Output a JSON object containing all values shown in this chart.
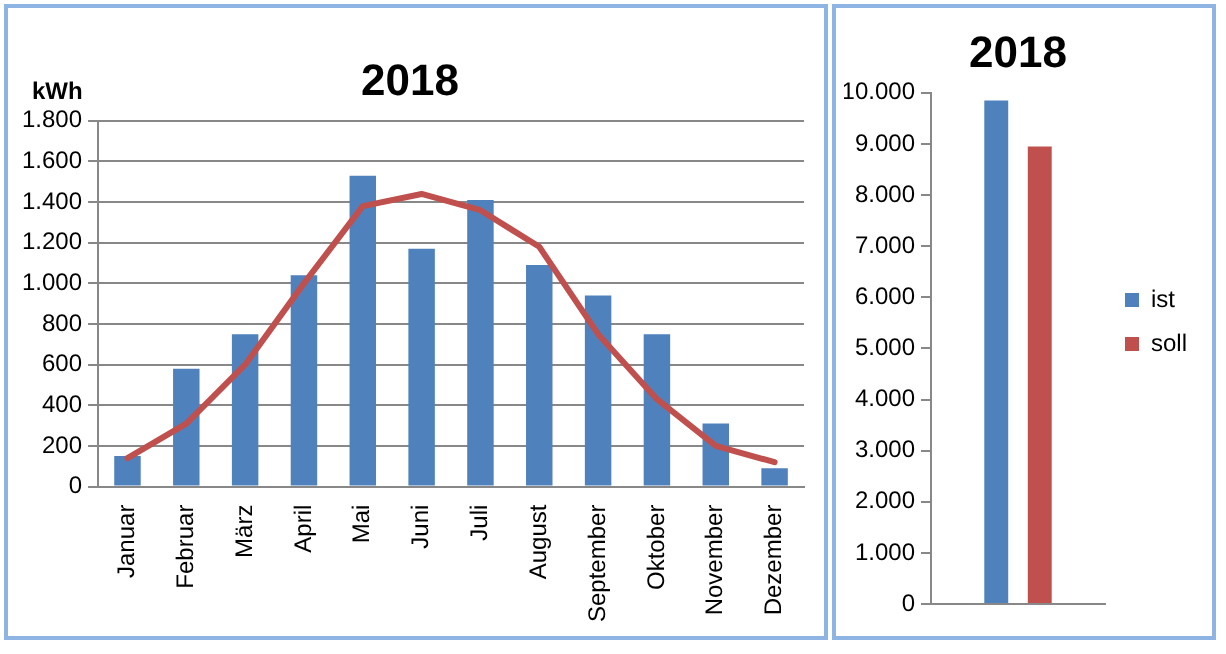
{
  "chart_data": [
    {
      "type": "bar",
      "title": "2018",
      "ylabel": "kWh",
      "categories": [
        "Januar",
        "Februar",
        "März",
        "April",
        "Mai",
        "Juni",
        "Juli",
        "August",
        "September",
        "Oktober",
        "November",
        "Dezember"
      ],
      "series": [
        {
          "type": "bar",
          "color": "#4f81bd",
          "values": [
            150,
            580,
            750,
            1040,
            1530,
            1170,
            1410,
            1090,
            940,
            750,
            310,
            90
          ]
        },
        {
          "type": "line",
          "color": "#c0504d",
          "values": [
            140,
            310,
            600,
            1000,
            1380,
            1440,
            1360,
            1180,
            750,
            430,
            200,
            120
          ]
        }
      ],
      "ylim": [
        0,
        1800
      ],
      "yticks": [
        {
          "value": 0,
          "label": "0"
        },
        {
          "value": 200,
          "label": "200"
        },
        {
          "value": 400,
          "label": "400"
        },
        {
          "value": 600,
          "label": "600"
        },
        {
          "value": 800,
          "label": "800"
        },
        {
          "value": 1000,
          "label": "1.000"
        },
        {
          "value": 1200,
          "label": "1.200"
        },
        {
          "value": 1400,
          "label": "1.400"
        },
        {
          "value": 1600,
          "label": "1.600"
        },
        {
          "value": 1800,
          "label": "1.800"
        }
      ],
      "grid": "y",
      "marker": "none",
      "line_style": "solid"
    },
    {
      "type": "bar",
      "title": "2018",
      "categories": [
        null
      ],
      "series": [
        {
          "name": "ist",
          "color": "#4f81bd",
          "values": [
            9850
          ]
        },
        {
          "name": "soll",
          "color": "#c0504d",
          "values": [
            8950
          ]
        }
      ],
      "ylim": [
        0,
        10000
      ],
      "yticks": [
        {
          "value": 0,
          "label": "0"
        },
        {
          "value": 1000,
          "label": "1.000"
        },
        {
          "value": 2000,
          "label": "2.000"
        },
        {
          "value": 3000,
          "label": "3.000"
        },
        {
          "value": 4000,
          "label": "4.000"
        },
        {
          "value": 5000,
          "label": "5.000"
        },
        {
          "value": 6000,
          "label": "6.000"
        },
        {
          "value": 7000,
          "label": "7.000"
        },
        {
          "value": 8000,
          "label": "8.000"
        },
        {
          "value": 9000,
          "label": "9.000"
        },
        {
          "value": 10000,
          "label": "10.000"
        }
      ],
      "legend": "right"
    }
  ]
}
